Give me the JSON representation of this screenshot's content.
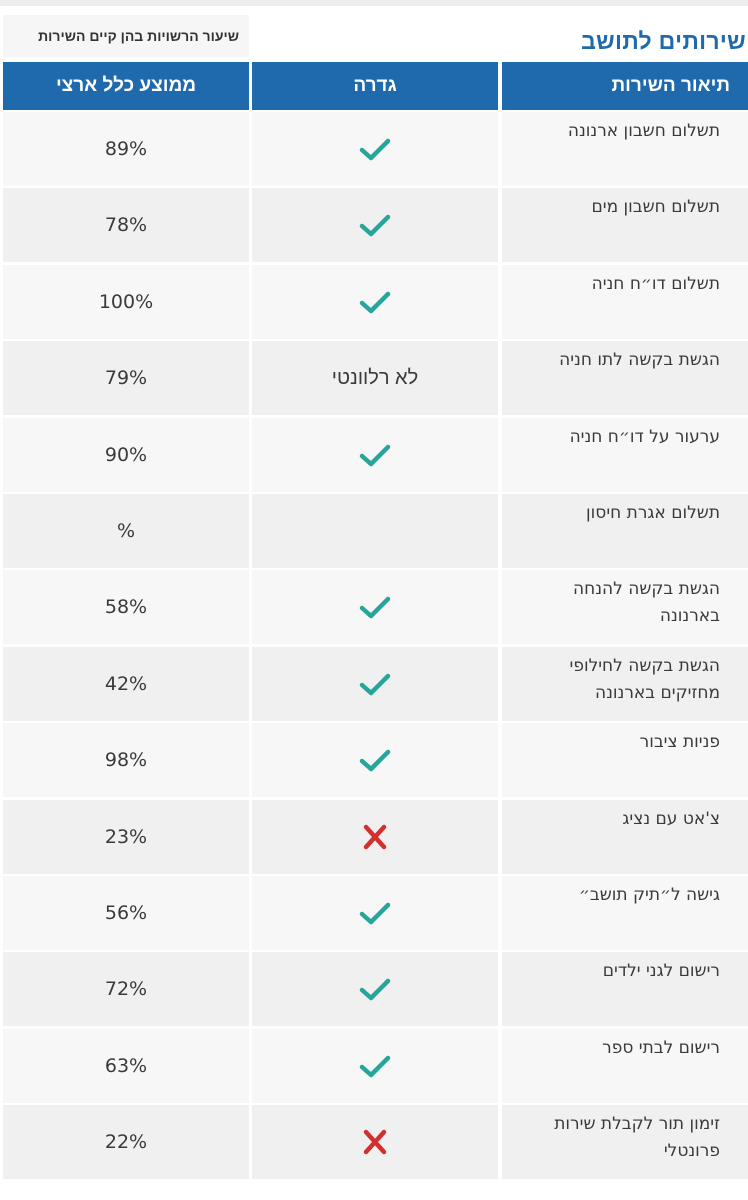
{
  "page": {
    "title": "שירותים לתושב",
    "legend": "שיעור הרשויות בהן קיים השירות"
  },
  "table": {
    "headers": {
      "description": "תיאור השירות",
      "fence": "גדרה",
      "national_avg": "ממוצע כלל ארצי"
    },
    "rows": [
      {
        "description": "תשלום חשבון ארנונה",
        "fence_icon": "check-icon",
        "fence_text": "",
        "national_avg": "89%"
      },
      {
        "description": "תשלום חשבון מים",
        "fence_icon": "check-icon",
        "fence_text": "",
        "national_avg": "78%"
      },
      {
        "description": "תשלום דו״ח חניה",
        "fence_icon": "check-icon",
        "fence_text": "",
        "national_avg": "100%"
      },
      {
        "description": "הגשת בקשה לתו חניה",
        "fence_icon": "",
        "fence_text": "לא רלוונטי",
        "national_avg": "79%"
      },
      {
        "description": "ערעור על דו״ח חניה",
        "fence_icon": "check-icon",
        "fence_text": "",
        "national_avg": "90%"
      },
      {
        "description": "תשלום אגרת חיסון",
        "fence_icon": "",
        "fence_text": "",
        "national_avg": "%"
      },
      {
        "description": "הגשת בקשה להנחה בארנונה",
        "fence_icon": "check-icon",
        "fence_text": "",
        "national_avg": "58%"
      },
      {
        "description": "הגשת בקשה לחילופי מחזיקים בארנונה",
        "fence_icon": "check-icon",
        "fence_text": "",
        "national_avg": "42%"
      },
      {
        "description": "פניות ציבור",
        "fence_icon": "check-icon",
        "fence_text": "",
        "national_avg": "98%"
      },
      {
        "description": "צ'אט עם נציג",
        "fence_icon": "x-icon",
        "fence_text": "",
        "national_avg": "23%"
      },
      {
        "description": "גישה ל״תיק תושב״",
        "fence_icon": "check-icon",
        "fence_text": "",
        "national_avg": "56%"
      },
      {
        "description": "רישום לגני ילדים",
        "fence_icon": "check-icon",
        "fence_text": "",
        "national_avg": "72%"
      },
      {
        "description": "רישום לבתי ספר",
        "fence_icon": "check-icon",
        "fence_text": "",
        "national_avg": "63%"
      },
      {
        "description": "זימון תור לקבלת שירות פרונטלי",
        "fence_icon": "x-icon",
        "fence_text": "",
        "national_avg": "22%"
      }
    ]
  },
  "colors": {
    "header_blue": "#1f6aad",
    "check": "#26a69a",
    "x": "#d32f2f",
    "row_odd": "#f7f7f7",
    "row_even": "#f0f0f0"
  }
}
